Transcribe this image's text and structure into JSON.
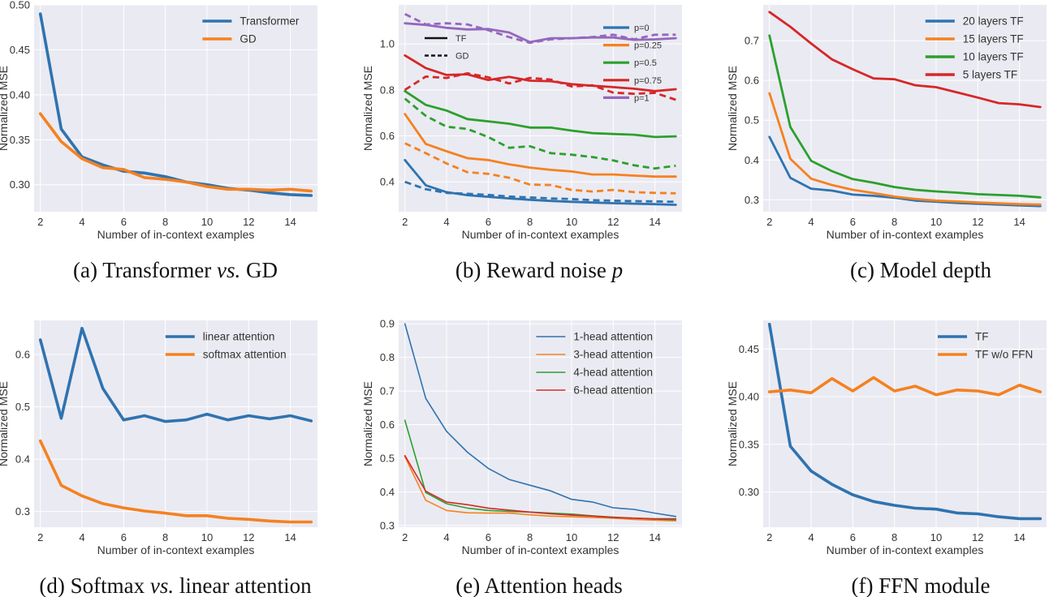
{
  "colors": {
    "blue": "#2f73b0",
    "orange": "#f5811f",
    "green": "#2ca02c",
    "red": "#d62728",
    "purple": "#9467bd",
    "panel_bg": "#eaeaf2",
    "grid": "#ffffff"
  },
  "chart_data": [
    {
      "type": "line",
      "xlabel": "Number of in-context examples",
      "ylabel": "Normalized MSE",
      "caption": "(a) Transformer vs. GD",
      "caption_parts": [
        "(a) Transformer ",
        "vs.",
        " GD"
      ],
      "xlim": [
        1.7,
        15.3
      ],
      "ylim": [
        0.27,
        0.5
      ],
      "xticks": [
        2,
        4,
        6,
        8,
        10,
        12,
        14
      ],
      "yticks": [
        0.3,
        0.35,
        0.4,
        0.45,
        0.5
      ],
      "ytick_labels": [
        "0.30",
        "0.35",
        "0.40",
        "0.45",
        "0.50"
      ],
      "legend_position": "top-right",
      "x": [
        2,
        3,
        4,
        5,
        6,
        7,
        8,
        9,
        10,
        11,
        12,
        13,
        14,
        15
      ],
      "series": [
        {
          "name": "Transformer",
          "color": "blue",
          "style": "thick",
          "values": [
            0.49,
            0.362,
            0.331,
            0.322,
            0.315,
            0.313,
            0.309,
            0.303,
            0.3,
            0.296,
            0.294,
            0.291,
            0.289,
            0.288
          ]
        },
        {
          "name": "GD",
          "color": "orange",
          "style": "thick",
          "values": [
            0.379,
            0.348,
            0.329,
            0.319,
            0.317,
            0.308,
            0.306,
            0.303,
            0.298,
            0.295,
            0.295,
            0.294,
            0.295,
            0.293
          ]
        }
      ]
    },
    {
      "type": "line",
      "xlabel": "Number of in-context examples",
      "ylabel": "Normalized MSE",
      "caption": "(b) Reward noise p",
      "caption_parts": [
        "(b) Reward noise ",
        "p",
        ""
      ],
      "xlim": [
        1.7,
        15.3
      ],
      "ylim": [
        0.27,
        1.17
      ],
      "xticks": [
        2,
        4,
        6,
        8,
        10,
        12,
        14
      ],
      "yticks": [
        0.4,
        0.6,
        0.8,
        1.0
      ],
      "ytick_labels": [
        "0.4",
        "0.6",
        "0.8",
        "1.0"
      ],
      "legend_position": "top-right",
      "style_legend": [
        {
          "name": "TF",
          "dash": "solid"
        },
        {
          "name": "GD",
          "dash": "dashed"
        }
      ],
      "x": [
        2,
        3,
        4,
        5,
        6,
        7,
        8,
        9,
        10,
        11,
        12,
        13,
        14,
        15
      ],
      "series": [
        {
          "name": "p=0",
          "color": "blue",
          "style": "medium",
          "dash": "solid",
          "values": [
            0.495,
            0.385,
            0.355,
            0.342,
            0.335,
            0.328,
            0.322,
            0.317,
            0.313,
            0.31,
            0.307,
            0.305,
            0.303,
            0.3
          ]
        },
        {
          "name": "",
          "color": "blue",
          "style": "medium",
          "dash": "dashed",
          "values": [
            0.4,
            0.368,
            0.352,
            0.348,
            0.343,
            0.336,
            0.332,
            0.328,
            0.325,
            0.32,
            0.318,
            0.316,
            0.315,
            0.313
          ]
        },
        {
          "name": "p=0.25",
          "color": "orange",
          "style": "medium",
          "dash": "solid",
          "values": [
            0.695,
            0.565,
            0.533,
            0.503,
            0.495,
            0.476,
            0.462,
            0.452,
            0.445,
            0.432,
            0.432,
            0.427,
            0.423,
            0.423
          ]
        },
        {
          "name": "",
          "color": "orange",
          "style": "medium",
          "dash": "dashed",
          "values": [
            0.568,
            0.525,
            0.48,
            0.442,
            0.435,
            0.418,
            0.388,
            0.386,
            0.365,
            0.358,
            0.365,
            0.355,
            0.352,
            0.35
          ]
        },
        {
          "name": "p=0.5",
          "color": "green",
          "style": "medium",
          "dash": "solid",
          "values": [
            0.795,
            0.735,
            0.71,
            0.673,
            0.663,
            0.653,
            0.636,
            0.636,
            0.623,
            0.612,
            0.608,
            0.605,
            0.595,
            0.598
          ]
        },
        {
          "name": "",
          "color": "green",
          "style": "medium",
          "dash": "dashed",
          "values": [
            0.762,
            0.687,
            0.64,
            0.63,
            0.595,
            0.548,
            0.555,
            0.525,
            0.518,
            0.508,
            0.493,
            0.472,
            0.458,
            0.47
          ]
        },
        {
          "name": "p=0.75",
          "color": "red",
          "style": "medium",
          "dash": "solid",
          "values": [
            0.95,
            0.895,
            0.865,
            0.868,
            0.843,
            0.857,
            0.84,
            0.838,
            0.825,
            0.818,
            0.812,
            0.805,
            0.795,
            0.803
          ]
        },
        {
          "name": "",
          "color": "red",
          "style": "medium",
          "dash": "dashed",
          "values": [
            0.8,
            0.858,
            0.852,
            0.872,
            0.855,
            0.828,
            0.852,
            0.845,
            0.815,
            0.82,
            0.788,
            0.783,
            0.787,
            0.757
          ]
        },
        {
          "name": "p=1",
          "color": "purple",
          "style": "medium",
          "dash": "solid",
          "values": [
            1.09,
            1.083,
            1.07,
            1.063,
            1.065,
            1.05,
            1.008,
            1.025,
            1.025,
            1.028,
            1.028,
            1.018,
            1.02,
            1.025
          ]
        },
        {
          "name": "",
          "color": "purple",
          "style": "medium",
          "dash": "dashed",
          "values": [
            1.13,
            1.085,
            1.09,
            1.085,
            1.06,
            1.03,
            1.005,
            1.02,
            1.025,
            1.03,
            1.04,
            1.02,
            1.04,
            1.04
          ]
        }
      ]
    },
    {
      "type": "line",
      "xlabel": "Number of in-context examples",
      "ylabel": "Normalized MSE",
      "caption": "(c) Model depth",
      "caption_parts": [
        "(c) Model depth",
        "",
        ""
      ],
      "xlim": [
        1.7,
        15.3
      ],
      "ylim": [
        0.27,
        0.79
      ],
      "xticks": [
        2,
        4,
        6,
        8,
        10,
        12,
        14
      ],
      "yticks": [
        0.3,
        0.4,
        0.5,
        0.6,
        0.7
      ],
      "ytick_labels": [
        "0.3",
        "0.4",
        "0.5",
        "0.6",
        "0.7"
      ],
      "legend_position": "top-right",
      "x": [
        2,
        3,
        4,
        5,
        6,
        7,
        8,
        9,
        10,
        11,
        12,
        13,
        14,
        15
      ],
      "series": [
        {
          "name": "20 layers TF",
          "color": "blue",
          "style": "medium",
          "values": [
            0.458,
            0.355,
            0.328,
            0.323,
            0.313,
            0.31,
            0.305,
            0.298,
            0.295,
            0.292,
            0.29,
            0.288,
            0.286,
            0.284
          ]
        },
        {
          "name": "15 layers TF",
          "color": "orange",
          "style": "medium",
          "values": [
            0.568,
            0.403,
            0.353,
            0.337,
            0.325,
            0.317,
            0.308,
            0.302,
            0.298,
            0.296,
            0.293,
            0.291,
            0.289,
            0.288
          ]
        },
        {
          "name": "10 layers TF",
          "color": "green",
          "style": "medium",
          "values": [
            0.713,
            0.483,
            0.398,
            0.372,
            0.352,
            0.343,
            0.332,
            0.325,
            0.321,
            0.318,
            0.314,
            0.312,
            0.31,
            0.306
          ]
        },
        {
          "name": "5 layers TF",
          "color": "red",
          "style": "medium",
          "values": [
            0.772,
            0.735,
            0.693,
            0.653,
            0.628,
            0.605,
            0.603,
            0.588,
            0.583,
            0.57,
            0.557,
            0.543,
            0.54,
            0.533
          ]
        }
      ]
    },
    {
      "type": "line",
      "xlabel": "Number of in-context examples",
      "ylabel": "Normalized MSE",
      "caption": "(d) Softmax vs. linear attention",
      "caption_parts": [
        "(d) Softmax ",
        "vs.",
        " linear attention"
      ],
      "xlim": [
        1.7,
        15.3
      ],
      "ylim": [
        0.27,
        0.665
      ],
      "xticks": [
        2,
        4,
        6,
        8,
        10,
        12,
        14
      ],
      "yticks": [
        0.3,
        0.4,
        0.5,
        0.6
      ],
      "ytick_labels": [
        "0.3",
        "0.4",
        "0.5",
        "0.6"
      ],
      "legend_position": "top-right",
      "x": [
        2,
        3,
        4,
        5,
        6,
        7,
        8,
        9,
        10,
        11,
        12,
        13,
        14,
        15
      ],
      "series": [
        {
          "name": "linear attention",
          "color": "blue",
          "style": "thick",
          "values": [
            0.628,
            0.478,
            0.65,
            0.535,
            0.475,
            0.483,
            0.472,
            0.475,
            0.486,
            0.475,
            0.483,
            0.477,
            0.483,
            0.473
          ]
        },
        {
          "name": "softmax attention",
          "color": "orange",
          "style": "thick",
          "values": [
            0.435,
            0.35,
            0.33,
            0.315,
            0.307,
            0.301,
            0.297,
            0.292,
            0.292,
            0.287,
            0.285,
            0.282,
            0.28,
            0.28
          ]
        }
      ]
    },
    {
      "type": "line",
      "xlabel": "Number of in-context examples",
      "ylabel": "Normalized MSE",
      "caption": "(e) Attention heads",
      "caption_parts": [
        "(e) Attention heads",
        "",
        ""
      ],
      "xlim": [
        1.7,
        15.3
      ],
      "ylim": [
        0.295,
        0.91
      ],
      "xticks": [
        2,
        4,
        6,
        8,
        10,
        12,
        14
      ],
      "yticks": [
        0.3,
        0.4,
        0.5,
        0.6,
        0.7,
        0.8,
        0.9
      ],
      "ytick_labels": [
        "0.3",
        "0.4",
        "0.5",
        "0.6",
        "0.7",
        "0.8",
        "0.9"
      ],
      "legend_position": "top-right",
      "x": [
        2,
        3,
        4,
        5,
        6,
        7,
        8,
        9,
        10,
        11,
        12,
        13,
        14,
        15
      ],
      "series": [
        {
          "name": "1-head attention",
          "color": "blue",
          "style": "thin",
          "values": [
            0.9,
            0.678,
            0.58,
            0.518,
            0.47,
            0.437,
            0.42,
            0.403,
            0.378,
            0.37,
            0.353,
            0.348,
            0.337,
            0.327
          ]
        },
        {
          "name": "3-head attention",
          "color": "orange",
          "style": "thin",
          "values": [
            0.505,
            0.375,
            0.345,
            0.338,
            0.337,
            0.337,
            0.332,
            0.328,
            0.326,
            0.324,
            0.322,
            0.318,
            0.316,
            0.314
          ]
        },
        {
          "name": "4-head attention",
          "color": "green",
          "style": "thin",
          "values": [
            0.613,
            0.398,
            0.365,
            0.352,
            0.345,
            0.342,
            0.34,
            0.337,
            0.334,
            0.329,
            0.325,
            0.322,
            0.319,
            0.317
          ]
        },
        {
          "name": "6-head attention",
          "color": "red",
          "style": "thin",
          "values": [
            0.508,
            0.402,
            0.37,
            0.362,
            0.352,
            0.346,
            0.34,
            0.335,
            0.331,
            0.328,
            0.324,
            0.322,
            0.32,
            0.32
          ]
        }
      ]
    },
    {
      "type": "line",
      "xlabel": "Number of in-context examples",
      "ylabel": "Normalized MSE",
      "caption": "(f) FFN module",
      "caption_parts": [
        "(f) FFN module",
        "",
        ""
      ],
      "xlim": [
        1.7,
        15.3
      ],
      "ylim": [
        0.263,
        0.48
      ],
      "xticks": [
        2,
        4,
        6,
        8,
        10,
        12,
        14
      ],
      "yticks": [
        0.3,
        0.35,
        0.4,
        0.45
      ],
      "ytick_labels": [
        "0.30",
        "0.35",
        "0.40",
        "0.45"
      ],
      "legend_position": "top-right",
      "x": [
        2,
        3,
        4,
        5,
        6,
        7,
        8,
        9,
        10,
        11,
        12,
        13,
        14,
        15
      ],
      "series": [
        {
          "name": "TF",
          "color": "blue",
          "style": "thick",
          "values": [
            0.476,
            0.348,
            0.322,
            0.308,
            0.297,
            0.29,
            0.286,
            0.283,
            0.282,
            0.278,
            0.277,
            0.274,
            0.272,
            0.272
          ]
        },
        {
          "name": "TF w/o FFN",
          "color": "orange",
          "style": "thick",
          "values": [
            0.405,
            0.407,
            0.404,
            0.419,
            0.406,
            0.42,
            0.406,
            0.411,
            0.402,
            0.407,
            0.406,
            0.402,
            0.412,
            0.405
          ]
        }
      ]
    }
  ]
}
